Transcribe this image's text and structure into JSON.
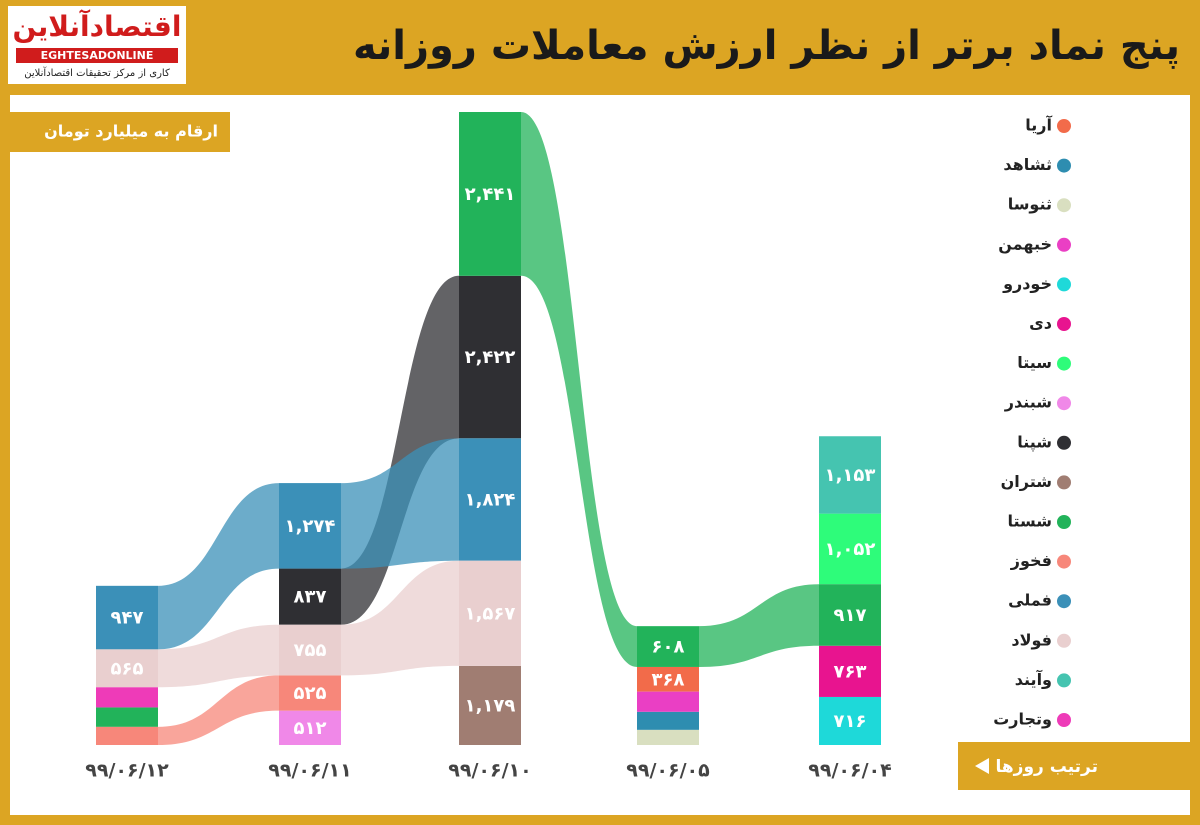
{
  "branding": {
    "logo": "اقتصادآنلاین",
    "latin": "EGHTESADONLINE",
    "tagline": "کاری از مرکز تحقیقات اقتصادآنلاین"
  },
  "chart_data": {
    "type": "ribbon",
    "title": "پنج نماد برتر از نظر ارزش معاملات روزانه",
    "subtitle": "ارقام به میلیارد تومان",
    "order_note": "ترتیب روزها",
    "categories": [
      "۹۹/۰۶/۱۲",
      "۹۹/۰۶/۱۱",
      "۹۹/۰۶/۱۰",
      "۹۹/۰۶/۰۵",
      "۹۹/۰۶/۰۴"
    ],
    "series": [
      {
        "name": "آریا",
        "color": "#f26b4a",
        "values": [
          null,
          null,
          null,
          368,
          null
        ],
        "value_labels": [
          null,
          null,
          null,
          "۳۶۸",
          null
        ]
      },
      {
        "name": "ثشاهد",
        "color": "#2e8db0",
        "values": [
          null,
          null,
          null,
          270,
          null
        ],
        "value_labels": [
          null,
          null,
          null,
          null,
          null
        ]
      },
      {
        "name": "ثنوسا",
        "color": "#d9dfc0",
        "values": [
          null,
          null,
          null,
          225,
          null
        ],
        "value_labels": [
          null,
          null,
          null,
          null,
          null
        ]
      },
      {
        "name": "خبهمن",
        "color": "#ea3fc4",
        "values": [
          null,
          null,
          null,
          300,
          null
        ],
        "value_labels": [
          null,
          null,
          null,
          null,
          null
        ]
      },
      {
        "name": "خودرو",
        "color": "#1ed9d9",
        "values": [
          null,
          null,
          null,
          null,
          716
        ],
        "value_labels": [
          null,
          null,
          null,
          null,
          "۷۱۶"
        ]
      },
      {
        "name": "دی",
        "color": "#e8148f",
        "values": [
          null,
          null,
          null,
          null,
          763
        ],
        "value_labels": [
          null,
          null,
          null,
          null,
          "۷۶۳"
        ]
      },
      {
        "name": "سیتا",
        "color": "#2efc7a",
        "values": [
          null,
          null,
          null,
          null,
          1052
        ],
        "value_labels": [
          null,
          null,
          null,
          null,
          "۱,۰۵۲"
        ]
      },
      {
        "name": "شبندر",
        "color": "#f088e8",
        "values": [
          null,
          512,
          null,
          null,
          null
        ],
        "value_labels": [
          null,
          "۵۱۲",
          null,
          null,
          null
        ]
      },
      {
        "name": "شپنا",
        "color": "#2f2f33",
        "values": [
          null,
          837,
          2422,
          null,
          null
        ],
        "value_labels": [
          null,
          "۸۳۷",
          "۲,۴۲۲",
          null,
          null
        ]
      },
      {
        "name": "شتران",
        "color": "#a07d72",
        "values": [
          null,
          null,
          1179,
          null,
          null
        ],
        "value_labels": [
          null,
          null,
          "۱,۱۷۹",
          null,
          null
        ]
      },
      {
        "name": "شستا",
        "color": "#22b35a",
        "values": [
          290,
          null,
          2441,
          608,
          917
        ],
        "value_labels": [
          null,
          null,
          "۲,۴۴۱",
          "۶۰۸",
          "۹۱۷"
        ]
      },
      {
        "name": "فخوز",
        "color": "#f7877a",
        "values": [
          270,
          525,
          null,
          null,
          null
        ],
        "value_labels": [
          null,
          "۵۲۵",
          null,
          null,
          null
        ]
      },
      {
        "name": "فملی",
        "color": "#3b90b8",
        "values": [
          947,
          1274,
          1824,
          null,
          null
        ],
        "value_labels": [
          "۹۴۷",
          "۱,۲۷۴",
          "۱,۸۲۴",
          null,
          null
        ]
      },
      {
        "name": "فولاد",
        "color": "#e9cfcf",
        "values": [
          565,
          755,
          1567,
          null,
          null
        ],
        "value_labels": [
          "۵۶۵",
          "۷۵۵",
          "۱,۵۶۷",
          null,
          null
        ]
      },
      {
        "name": "وآیند",
        "color": "#45c4b0",
        "values": [
          null,
          null,
          null,
          null,
          1153
        ],
        "value_labels": [
          null,
          null,
          null,
          null,
          "۱,۱۵۳"
        ]
      },
      {
        "name": "وتجارت",
        "color": "#ee3bb8",
        "values": [
          300,
          null,
          null,
          null,
          null
        ],
        "value_labels": [
          null,
          null,
          null,
          null,
          null
        ]
      }
    ]
  }
}
